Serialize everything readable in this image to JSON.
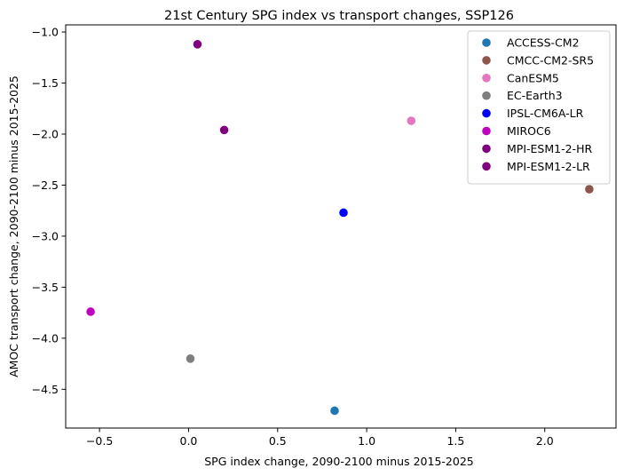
{
  "chart_data": {
    "type": "scatter",
    "title": "21st Century SPG index vs transport changes, SSP126",
    "xlabel": "SPG index change, 2090-2100 minus 2015-2025",
    "ylabel": "AMOC transport change, 2090-2100 minus 2015-2025",
    "xlim": [
      -0.69,
      2.4
    ],
    "ylim": [
      -4.88,
      -0.93
    ],
    "xticks": [
      -0.5,
      0.0,
      0.5,
      1.0,
      1.5,
      2.0
    ],
    "xtick_labels": [
      "−0.5",
      "0.0",
      "0.5",
      "1.0",
      "1.5",
      "2.0"
    ],
    "yticks": [
      -4.5,
      -4.0,
      -3.5,
      -3.0,
      -2.5,
      -2.0,
      -1.5,
      -1.0
    ],
    "ytick_labels": [
      "−4.5",
      "−4.0",
      "−3.5",
      "−3.0",
      "−2.5",
      "−2.0",
      "−1.5",
      "−1.0"
    ],
    "grid": false,
    "legend_position": "top-right",
    "series": [
      {
        "name": "ACCESS-CM2",
        "color": "#1f77b4",
        "x": 0.82,
        "y": -4.71
      },
      {
        "name": "CMCC-CM2-SR5",
        "color": "#8c564b",
        "x": 2.25,
        "y": -2.54
      },
      {
        "name": "CanESM5",
        "color": "#e377c2",
        "x": 1.25,
        "y": -1.87
      },
      {
        "name": "EC-Earth3",
        "color": "#7f7f7f",
        "x": 0.01,
        "y": -4.2
      },
      {
        "name": "IPSL-CM6A-LR",
        "color": "#0000ff",
        "x": 0.87,
        "y": -2.77
      },
      {
        "name": "MIROC6",
        "color": "#bf00bf",
        "x": -0.55,
        "y": -3.74
      },
      {
        "name": "MPI-ESM1-2-HR",
        "color": "#800080",
        "x": 0.05,
        "y": -1.12
      },
      {
        "name": "MPI-ESM1-2-LR",
        "color": "#800080",
        "x": 0.2,
        "y": -1.96
      }
    ]
  }
}
